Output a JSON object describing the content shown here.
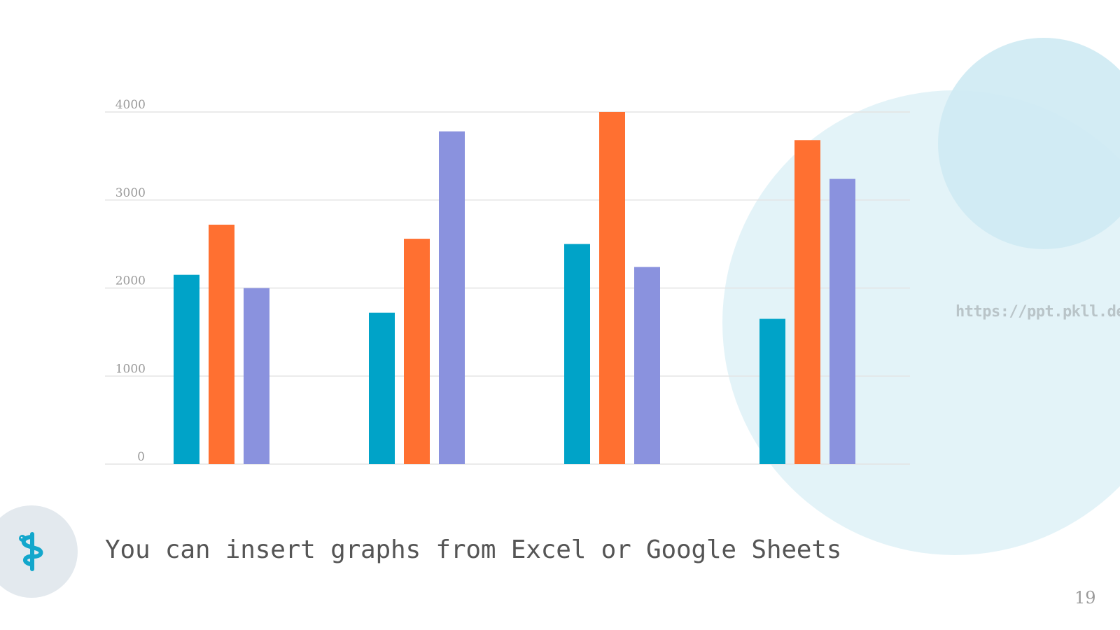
{
  "slide": {
    "caption": "You can insert graphs from Excel or Google Sheets",
    "page_number": "19",
    "watermark": "https://ppt.pkll.de",
    "logo_icon": "medical-snake-icon"
  },
  "colors": {
    "series_1": "#00a3c8",
    "series_2": "#ff7031",
    "series_3": "#8a92de",
    "grid": "#e3e3e3",
    "tick_label": "#9a9a9a",
    "background_circles": "#e3f3f8"
  },
  "chart_data": {
    "type": "bar",
    "title": "",
    "xlabel": "",
    "ylabel": "",
    "categories": [
      "",
      "",
      "",
      ""
    ],
    "series": [
      {
        "values": [
          2150,
          1720,
          2500,
          1650
        ]
      },
      {
        "values": [
          2720,
          2560,
          4000,
          3680
        ]
      },
      {
        "values": [
          2000,
          3780,
          2240,
          3240
        ]
      }
    ],
    "ylim": [
      0,
      4000
    ],
    "yticks": [
      0,
      1000,
      2000,
      3000,
      4000
    ],
    "grid": true,
    "legend": "none"
  }
}
